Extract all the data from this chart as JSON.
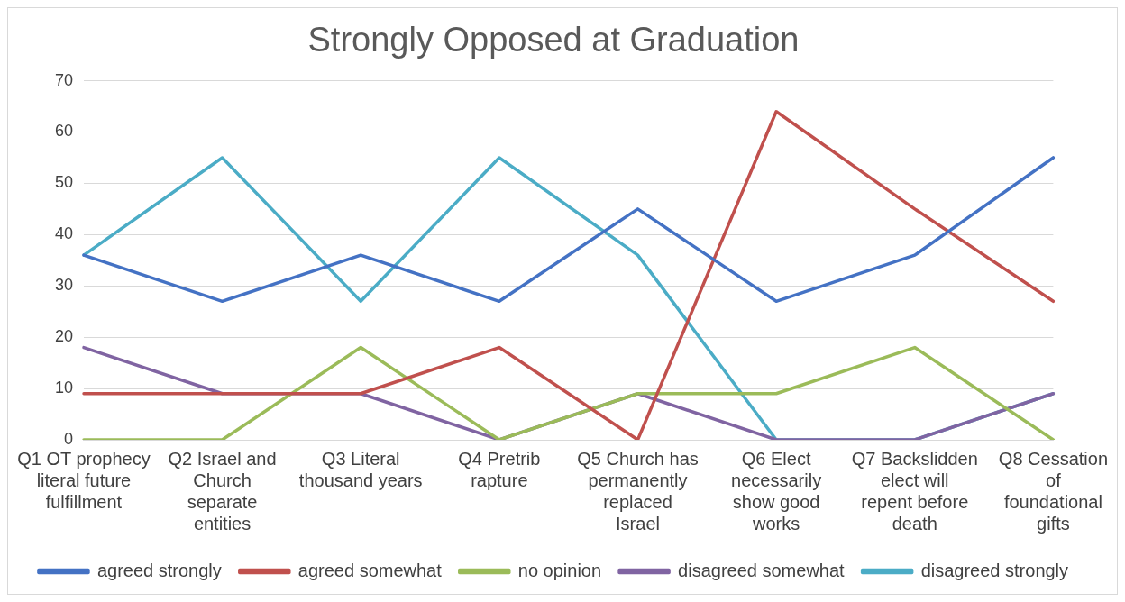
{
  "chart_data": {
    "type": "line",
    "title": "Strongly Opposed at Graduation",
    "categories": [
      "Q1 OT prophecy literal future fulfillment",
      "Q2 Israel and Church separate entities",
      "Q3 Literal thousand years",
      "Q4 Pretrib rapture",
      "Q5 Church has permanently replaced Israel",
      "Q6 Elect necessarily show good works",
      "Q7 Backslidden elect will repent before death",
      "Q8 Cessation of foundational gifts"
    ],
    "series": [
      {
        "name": "agreed strongly",
        "color": "#4472c4",
        "values": [
          36,
          27,
          36,
          27,
          45,
          27,
          36,
          55
        ]
      },
      {
        "name": "agreed somewhat",
        "color": "#c0504d",
        "values": [
          9,
          9,
          9,
          18,
          0,
          64,
          45,
          27
        ]
      },
      {
        "name": "no opinion",
        "color": "#9bbb59",
        "values": [
          0,
          0,
          18,
          0,
          9,
          9,
          18,
          0
        ]
      },
      {
        "name": "disagreed somewhat",
        "color": "#8064a2",
        "values": [
          18,
          9,
          9,
          0,
          9,
          0,
          0,
          9
        ]
      },
      {
        "name": "disagreed strongly",
        "color": "#4bacc6",
        "values": [
          36,
          55,
          27,
          55,
          36,
          0,
          0,
          9
        ]
      }
    ],
    "ylim": [
      0,
      70
    ],
    "yticks": [
      0,
      10,
      20,
      30,
      40,
      50,
      60,
      70
    ],
    "grid": "y",
    "legend": "bottom",
    "marker": "none",
    "line_style": "solid"
  }
}
